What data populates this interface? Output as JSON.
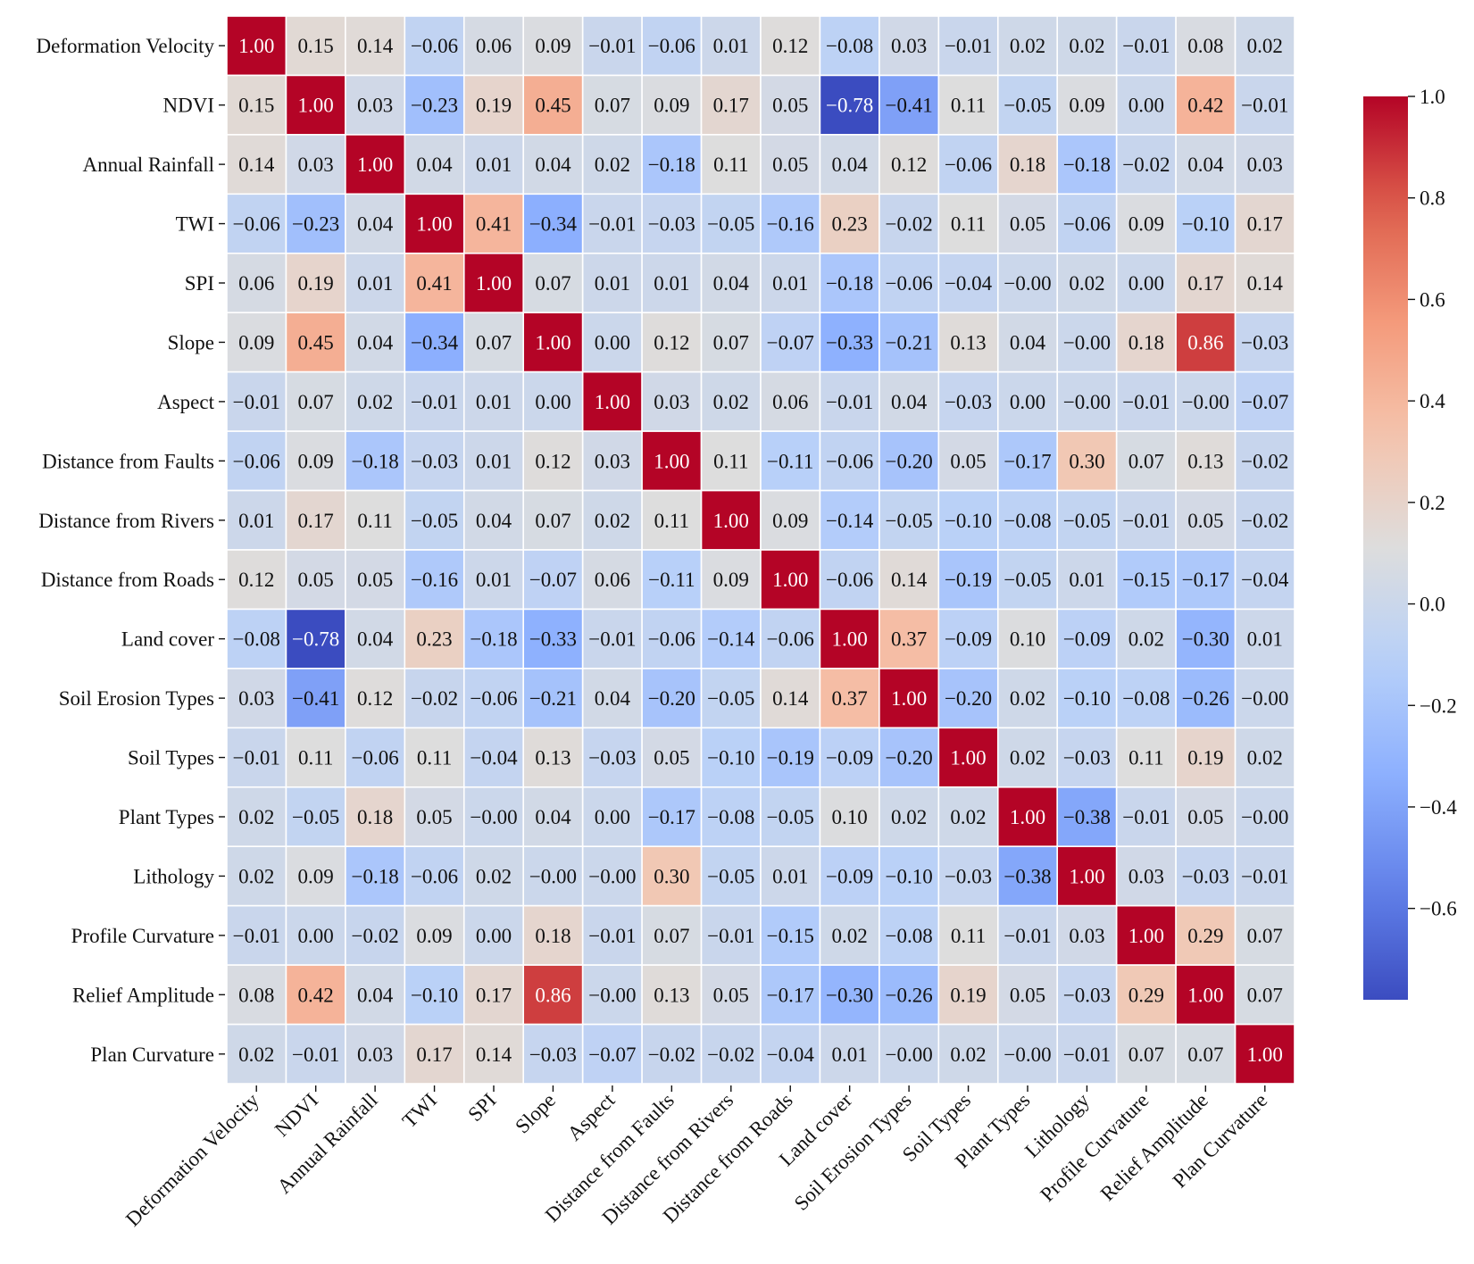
{
  "chart_data": {
    "type": "heatmap",
    "title": "",
    "xlabel": "",
    "ylabel": "",
    "variables": [
      "Deformation Velocity",
      "NDVI",
      "Annual Rainfall",
      "TWI",
      "SPI",
      "Slope",
      "Aspect",
      "Distance from Faults",
      "Distance from Rivers",
      "Distance from Roads",
      "Land cover",
      "Soil Erosion Types",
      "Soil Types",
      "Plant Types",
      "Lithology",
      "Profile Curvature",
      "Relief Amplitude",
      "Plan Curvature"
    ],
    "values": [
      [
        1.0,
        0.15,
        0.14,
        -0.06,
        0.06,
        0.09,
        -0.01,
        -0.06,
        0.01,
        0.12,
        -0.08,
        0.03,
        -0.01,
        0.02,
        0.02,
        -0.01,
        0.08,
        0.02
      ],
      [
        0.15,
        1.0,
        0.03,
        -0.23,
        0.19,
        0.45,
        0.07,
        0.09,
        0.17,
        0.05,
        -0.78,
        -0.41,
        0.11,
        -0.05,
        0.09,
        0.0,
        0.42,
        -0.01
      ],
      [
        0.14,
        0.03,
        1.0,
        0.04,
        0.01,
        0.04,
        0.02,
        -0.18,
        0.11,
        0.05,
        0.04,
        0.12,
        -0.06,
        0.18,
        -0.18,
        -0.02,
        0.04,
        0.03
      ],
      [
        -0.06,
        -0.23,
        0.04,
        1.0,
        0.41,
        -0.34,
        -0.01,
        -0.03,
        -0.05,
        -0.16,
        0.23,
        -0.02,
        0.11,
        0.05,
        -0.06,
        0.09,
        -0.1,
        0.17
      ],
      [
        0.06,
        0.19,
        0.01,
        0.41,
        1.0,
        0.07,
        0.01,
        0.01,
        0.04,
        0.01,
        -0.18,
        -0.06,
        -0.04,
        -0.001,
        0.02,
        0.0,
        0.17,
        0.14
      ],
      [
        0.09,
        0.45,
        0.04,
        -0.34,
        0.07,
        1.0,
        0.0,
        0.12,
        0.07,
        -0.07,
        -0.33,
        -0.21,
        0.13,
        0.04,
        -0.001,
        0.18,
        0.86,
        -0.03
      ],
      [
        -0.01,
        0.07,
        0.02,
        -0.01,
        0.01,
        0.0,
        1.0,
        0.03,
        0.02,
        0.06,
        -0.01,
        0.04,
        -0.03,
        0.0,
        -0.001,
        -0.01,
        -0.001,
        -0.07
      ],
      [
        -0.06,
        0.09,
        -0.18,
        -0.03,
        0.01,
        0.12,
        0.03,
        1.0,
        0.11,
        -0.11,
        -0.06,
        -0.2,
        0.05,
        -0.17,
        0.3,
        0.07,
        0.13,
        -0.02
      ],
      [
        0.01,
        0.17,
        0.11,
        -0.05,
        0.04,
        0.07,
        0.02,
        0.11,
        1.0,
        0.09,
        -0.14,
        -0.05,
        -0.1,
        -0.08,
        -0.05,
        -0.01,
        0.05,
        -0.02
      ],
      [
        0.12,
        0.05,
        0.05,
        -0.16,
        0.01,
        -0.07,
        0.06,
        -0.11,
        0.09,
        1.0,
        -0.06,
        0.14,
        -0.19,
        -0.05,
        0.01,
        -0.15,
        -0.17,
        -0.04
      ],
      [
        -0.08,
        -0.78,
        0.04,
        0.23,
        -0.18,
        -0.33,
        -0.01,
        -0.06,
        -0.14,
        -0.06,
        1.0,
        0.37,
        -0.09,
        0.1,
        -0.09,
        0.02,
        -0.3,
        0.01
      ],
      [
        0.03,
        -0.41,
        0.12,
        -0.02,
        -0.06,
        -0.21,
        0.04,
        -0.2,
        -0.05,
        0.14,
        0.37,
        1.0,
        -0.2,
        0.02,
        -0.1,
        -0.08,
        -0.26,
        -0.001
      ],
      [
        -0.01,
        0.11,
        -0.06,
        0.11,
        -0.04,
        0.13,
        -0.03,
        0.05,
        -0.1,
        -0.19,
        -0.09,
        -0.2,
        1.0,
        0.02,
        -0.03,
        0.11,
        0.19,
        0.02
      ],
      [
        0.02,
        -0.05,
        0.18,
        0.05,
        -0.001,
        0.04,
        0.0,
        -0.17,
        -0.08,
        -0.05,
        0.1,
        0.02,
        0.02,
        1.0,
        -0.38,
        -0.01,
        0.05,
        -0.001
      ],
      [
        0.02,
        0.09,
        -0.18,
        -0.06,
        0.02,
        -0.001,
        -0.001,
        0.3,
        -0.05,
        0.01,
        -0.09,
        -0.1,
        -0.03,
        -0.38,
        1.0,
        0.03,
        -0.03,
        -0.01
      ],
      [
        -0.01,
        0.0,
        -0.02,
        0.09,
        0.0,
        0.18,
        -0.01,
        0.07,
        -0.01,
        -0.15,
        0.02,
        -0.08,
        0.11,
        -0.01,
        0.03,
        1.0,
        0.29,
        0.07
      ],
      [
        0.08,
        0.42,
        0.04,
        -0.1,
        0.17,
        0.86,
        -0.001,
        0.13,
        0.05,
        -0.17,
        -0.3,
        -0.26,
        0.19,
        0.05,
        -0.03,
        0.29,
        1.0,
        0.07
      ],
      [
        0.02,
        -0.01,
        0.03,
        0.17,
        0.14,
        -0.03,
        -0.07,
        -0.02,
        -0.02,
        -0.04,
        0.01,
        -0.001,
        0.02,
        -0.001,
        -0.01,
        0.07,
        0.07,
        1.0
      ]
    ],
    "colorscale": {
      "name": "coolwarm",
      "range": [
        -0.78,
        1.0
      ],
      "ticks": [
        1.0,
        0.8,
        0.6,
        0.4,
        0.2,
        0.0,
        -0.2,
        -0.4,
        -0.6
      ],
      "tick_labels": [
        "1.0",
        "0.8",
        "0.6",
        "0.4",
        "0.2",
        "0.0",
        "−0.2",
        "−0.4",
        "−0.6"
      ]
    },
    "annotations": true,
    "decimals": 2,
    "grid": "white cell borders",
    "legend": "right"
  }
}
